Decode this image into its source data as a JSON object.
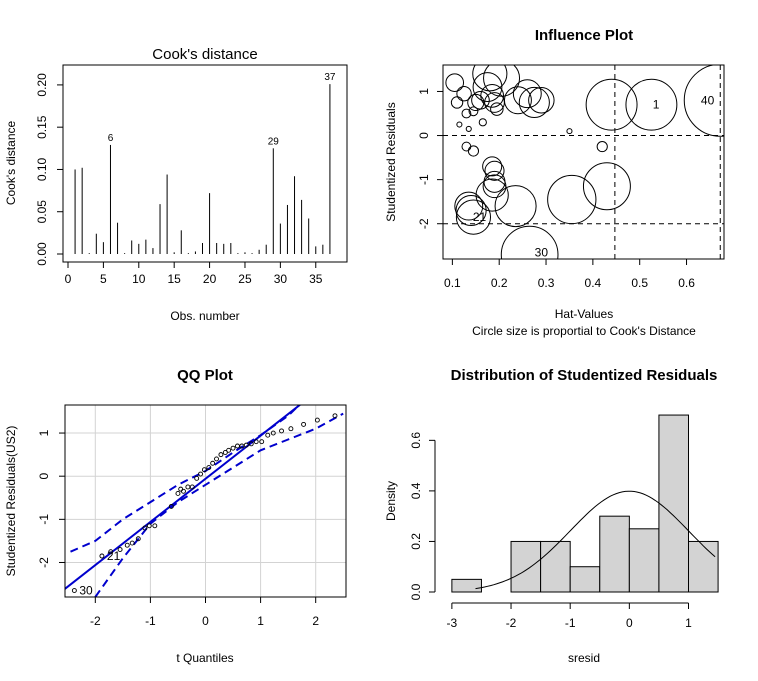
{
  "chart_data": [
    {
      "type": "bar",
      "title": "Cook's distance",
      "xlabel": "Obs. number",
      "ylabel": "Cook's distance",
      "xlim": [
        0,
        38
      ],
      "ylim": [
        0,
        0.22
      ],
      "x_ticks": [
        0,
        5,
        10,
        15,
        20,
        25,
        30,
        35
      ],
      "y_ticks": [
        0.0,
        0.05,
        0.1,
        0.15,
        0.2
      ],
      "y_tick_labels": [
        "0.00",
        "0.05",
        "0.10",
        "0.15",
        "0.20"
      ],
      "x": [
        1,
        2,
        3,
        4,
        5,
        6,
        7,
        8,
        9,
        10,
        11,
        12,
        13,
        14,
        15,
        16,
        17,
        18,
        19,
        20,
        21,
        22,
        23,
        24,
        25,
        26,
        27,
        28,
        29,
        30,
        31,
        32,
        33,
        34,
        35,
        36,
        37
      ],
      "values": [
        0.1,
        0.102,
        0.001,
        0.024,
        0.014,
        0.129,
        0.037,
        0.001,
        0.016,
        0.012,
        0.017,
        0.007,
        0.059,
        0.094,
        0.002,
        0.028,
        0.001,
        0.003,
        0.013,
        0.072,
        0.013,
        0.012,
        0.013,
        0.001,
        0.002,
        0.001,
        0.005,
        0.011,
        0.125,
        0.036,
        0.058,
        0.092,
        0.064,
        0.042,
        0.009,
        0.011,
        0.201
      ],
      "labels": [
        {
          "index": 6,
          "text": "6"
        },
        {
          "index": 29,
          "text": "29"
        },
        {
          "index": 37,
          "text": "37"
        }
      ]
    },
    {
      "type": "scatter",
      "title": "Influence Plot",
      "xlabel": "Hat-Values",
      "ylabel": "Studentized Residuals",
      "subtitle": "Circle size is proportial to Cook's Distance",
      "xlim": [
        0.08,
        0.68
      ],
      "ylim": [
        -2.8,
        1.6
      ],
      "x_ticks": [
        0.1,
        0.2,
        0.3,
        0.4,
        0.5,
        0.6
      ],
      "x_tick_labels": [
        "0.1",
        "0.2",
        "0.3",
        "0.4",
        "0.5",
        "0.6"
      ],
      "y_ticks": [
        -2,
        -1,
        0,
        1
      ],
      "y_tick_labels": [
        "-2",
        "-1",
        "0",
        "1"
      ],
      "hlines": [
        -2,
        0,
        2
      ],
      "vlines": [
        0.447,
        0.672
      ],
      "points": [
        {
          "x": 0.105,
          "y": 1.2,
          "r": 0.012
        },
        {
          "x": 0.11,
          "y": 0.75,
          "r": 0.005
        },
        {
          "x": 0.115,
          "y": 0.25,
          "r": 0.001
        },
        {
          "x": 0.125,
          "y": 0.95,
          "r": 0.008
        },
        {
          "x": 0.13,
          "y": 0.5,
          "r": 0.003
        },
        {
          "x": 0.135,
          "y": 0.15,
          "r": 0.001
        },
        {
          "x": 0.145,
          "y": 0.55,
          "r": 0.003
        },
        {
          "x": 0.15,
          "y": 0.75,
          "r": 0.01
        },
        {
          "x": 0.16,
          "y": 0.8,
          "r": 0.012
        },
        {
          "x": 0.165,
          "y": 0.3,
          "r": 0.002
        },
        {
          "x": 0.175,
          "y": 1.1,
          "r": 0.032
        },
        {
          "x": 0.18,
          "y": 1.4,
          "r": 0.045
        },
        {
          "x": 0.185,
          "y": 0.9,
          "r": 0.02
        },
        {
          "x": 0.19,
          "y": 0.75,
          "r": 0.015
        },
        {
          "x": 0.195,
          "y": 0.6,
          "r": 0.006
        },
        {
          "x": 0.205,
          "y": 1.3,
          "r": 0.05
        },
        {
          "x": 0.24,
          "y": 0.8,
          "r": 0.028
        },
        {
          "x": 0.26,
          "y": 0.95,
          "r": 0.03
        },
        {
          "x": 0.275,
          "y": 0.75,
          "r": 0.035
        },
        {
          "x": 0.29,
          "y": 0.8,
          "r": 0.025
        },
        {
          "x": 0.35,
          "y": 0.1,
          "r": 0.001
        },
        {
          "x": 0.13,
          "y": -0.25,
          "r": 0.003
        },
        {
          "x": 0.145,
          "y": -0.35,
          "r": 0.004
        },
        {
          "x": 0.185,
          "y": -0.7,
          "r": 0.014
        },
        {
          "x": 0.19,
          "y": -0.8,
          "r": 0.014
        },
        {
          "x": 0.19,
          "y": -1.05,
          "r": 0.017
        },
        {
          "x": 0.19,
          "y": -1.15,
          "r": 0.02
        },
        {
          "x": 0.185,
          "y": -1.35,
          "r": 0.04
        },
        {
          "x": 0.135,
          "y": -1.6,
          "r": 0.03
        },
        {
          "x": 0.14,
          "y": -1.7,
          "r": 0.035
        },
        {
          "x": 0.145,
          "y": -1.85,
          "r": 0.045
        },
        {
          "x": 0.235,
          "y": -1.6,
          "r": 0.065
        },
        {
          "x": 0.355,
          "y": -1.45,
          "r": 0.09
        },
        {
          "x": 0.43,
          "y": -1.15,
          "r": 0.085
        },
        {
          "x": 0.42,
          "y": -0.25,
          "r": 0.004
        },
        {
          "x": 0.265,
          "y": -2.7,
          "r": 0.124
        },
        {
          "x": 0.44,
          "y": 0.7,
          "r": 0.1
        },
        {
          "x": 0.525,
          "y": 0.7,
          "r": 0.1
        },
        {
          "x": 0.672,
          "y": 0.8,
          "r": 0.2
        }
      ],
      "labels": [
        {
          "x": 0.535,
          "y": 0.7,
          "text": "1"
        },
        {
          "x": 0.645,
          "y": 0.8,
          "text": "40"
        },
        {
          "x": 0.158,
          "y": -1.85,
          "text": "21"
        },
        {
          "x": 0.29,
          "y": -2.65,
          "text": "30"
        }
      ]
    },
    {
      "type": "scatter",
      "title": "QQ Plot",
      "xlabel": "t Quantiles",
      "ylabel": "Studentized Residuals(US2)",
      "xlim": [
        -2.55,
        2.55
      ],
      "ylim": [
        -2.8,
        1.65
      ],
      "x_ticks": [
        -2,
        -1,
        0,
        1,
        2
      ],
      "x_tick_labels": [
        "-2",
        "-1",
        "0",
        "1",
        "2"
      ],
      "y_ticks": [
        -2,
        -1,
        0,
        1
      ],
      "y_tick_labels": [
        "-2",
        "-1",
        "0",
        "1"
      ],
      "grid": true,
      "line": {
        "intercept": -0.06,
        "slope": 1.0
      },
      "band_upper": [
        [
          -2.45,
          -1.75
        ],
        [
          -2.0,
          -1.5
        ],
        [
          -1.5,
          -1.0
        ],
        [
          -1.0,
          -0.6
        ],
        [
          -0.5,
          -0.2
        ],
        [
          0.0,
          0.12
        ],
        [
          0.5,
          0.55
        ],
        [
          1.0,
          0.95
        ],
        [
          1.5,
          1.4
        ],
        [
          1.7,
          1.65
        ]
      ],
      "band_lower": [
        [
          -2.0,
          -2.8
        ],
        [
          -1.5,
          -1.9
        ],
        [
          -1.0,
          -1.1
        ],
        [
          -0.5,
          -0.6
        ],
        [
          0.0,
          -0.2
        ],
        [
          0.5,
          0.2
        ],
        [
          1.0,
          0.6
        ],
        [
          1.5,
          0.85
        ],
        [
          2.0,
          1.1
        ],
        [
          2.5,
          1.45
        ]
      ],
      "x": [
        -2.38,
        -1.88,
        -1.72,
        -1.55,
        -1.42,
        -1.33,
        -1.22,
        -1.1,
        -1.02,
        -0.92,
        -0.62,
        -0.5,
        -0.45,
        -0.4,
        -0.32,
        -0.24,
        -0.16,
        -0.09,
        -0.02,
        0.06,
        0.13,
        0.2,
        0.28,
        0.36,
        0.42,
        0.5,
        0.58,
        0.66,
        0.74,
        0.83,
        0.92,
        1.02,
        1.13,
        1.23,
        1.38,
        1.55,
        1.78,
        2.03,
        2.35
      ],
      "y": [
        -2.65,
        -1.85,
        -1.75,
        -1.7,
        -1.6,
        -1.55,
        -1.45,
        -1.2,
        -1.15,
        -1.15,
        -0.7,
        -0.4,
        -0.3,
        -0.35,
        -0.25,
        -0.25,
        -0.05,
        0.05,
        0.15,
        0.2,
        0.3,
        0.4,
        0.5,
        0.55,
        0.6,
        0.65,
        0.7,
        0.7,
        0.72,
        0.75,
        0.8,
        0.8,
        0.95,
        1.0,
        1.05,
        1.1,
        1.2,
        1.3,
        1.4
      ],
      "labels": [
        {
          "x": -2.38,
          "y": -2.65,
          "text": "30"
        },
        {
          "x": -1.88,
          "y": -1.85,
          "text": "21"
        }
      ]
    },
    {
      "type": "bar",
      "title": "Distribution of Studentized Residuals",
      "xlabel": "sresid",
      "ylabel": "Density",
      "xlim": [
        -3.15,
        1.6
      ],
      "ylim": [
        0,
        0.72
      ],
      "x_ticks": [
        -3,
        -2,
        -1,
        0,
        1
      ],
      "x_tick_labels": [
        "-3",
        "-2",
        "-1",
        "0",
        "1"
      ],
      "y_ticks": [
        0.0,
        0.2,
        0.4,
        0.6
      ],
      "y_tick_labels": [
        "0.0",
        "0.2",
        "0.4",
        "0.6"
      ],
      "bins": [
        [
          -3.0,
          -2.5
        ],
        [
          -2.0,
          -1.5
        ],
        [
          -1.5,
          -1.0
        ],
        [
          -1.0,
          -0.5
        ],
        [
          -0.5,
          0.0
        ],
        [
          0.0,
          0.5
        ],
        [
          0.5,
          1.0
        ],
        [
          1.0,
          1.5
        ]
      ],
      "values": [
        0.05,
        0.2,
        0.2,
        0.1,
        0.3,
        0.25,
        0.7,
        0.2
      ],
      "curve": {
        "type": "normal",
        "mean": 0,
        "sd": 1,
        "x_from": -2.6,
        "x_to": 1.45
      }
    }
  ]
}
